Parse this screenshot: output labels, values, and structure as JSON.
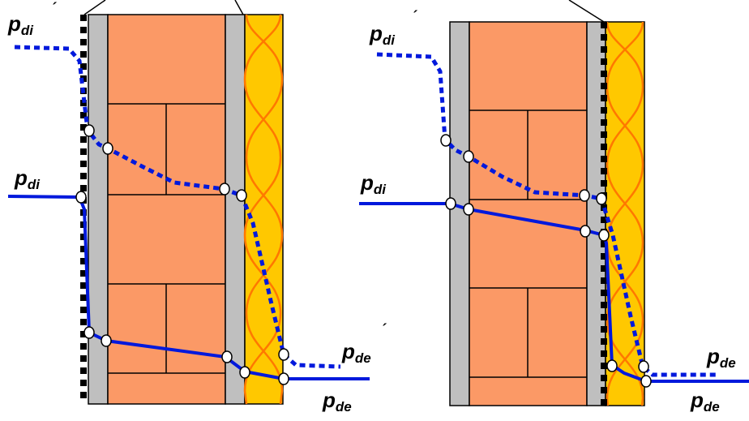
{
  "labels": {
    "p_symbol": "p",
    "sub_di": "di",
    "sub_de": "de",
    "prime": "´"
  },
  "colors": {
    "gray": "#bfbfbf",
    "brick": "#fb9966",
    "insulation": "#ffc800",
    "wave": "#ff7800",
    "line": "#0019dc",
    "border": "#000000"
  },
  "panels": [
    {
      "name": "left-wall-diagram",
      "vapor_barrier": "inner"
    },
    {
      "name": "right-wall-diagram",
      "vapor_barrier": "outer"
    }
  ]
}
